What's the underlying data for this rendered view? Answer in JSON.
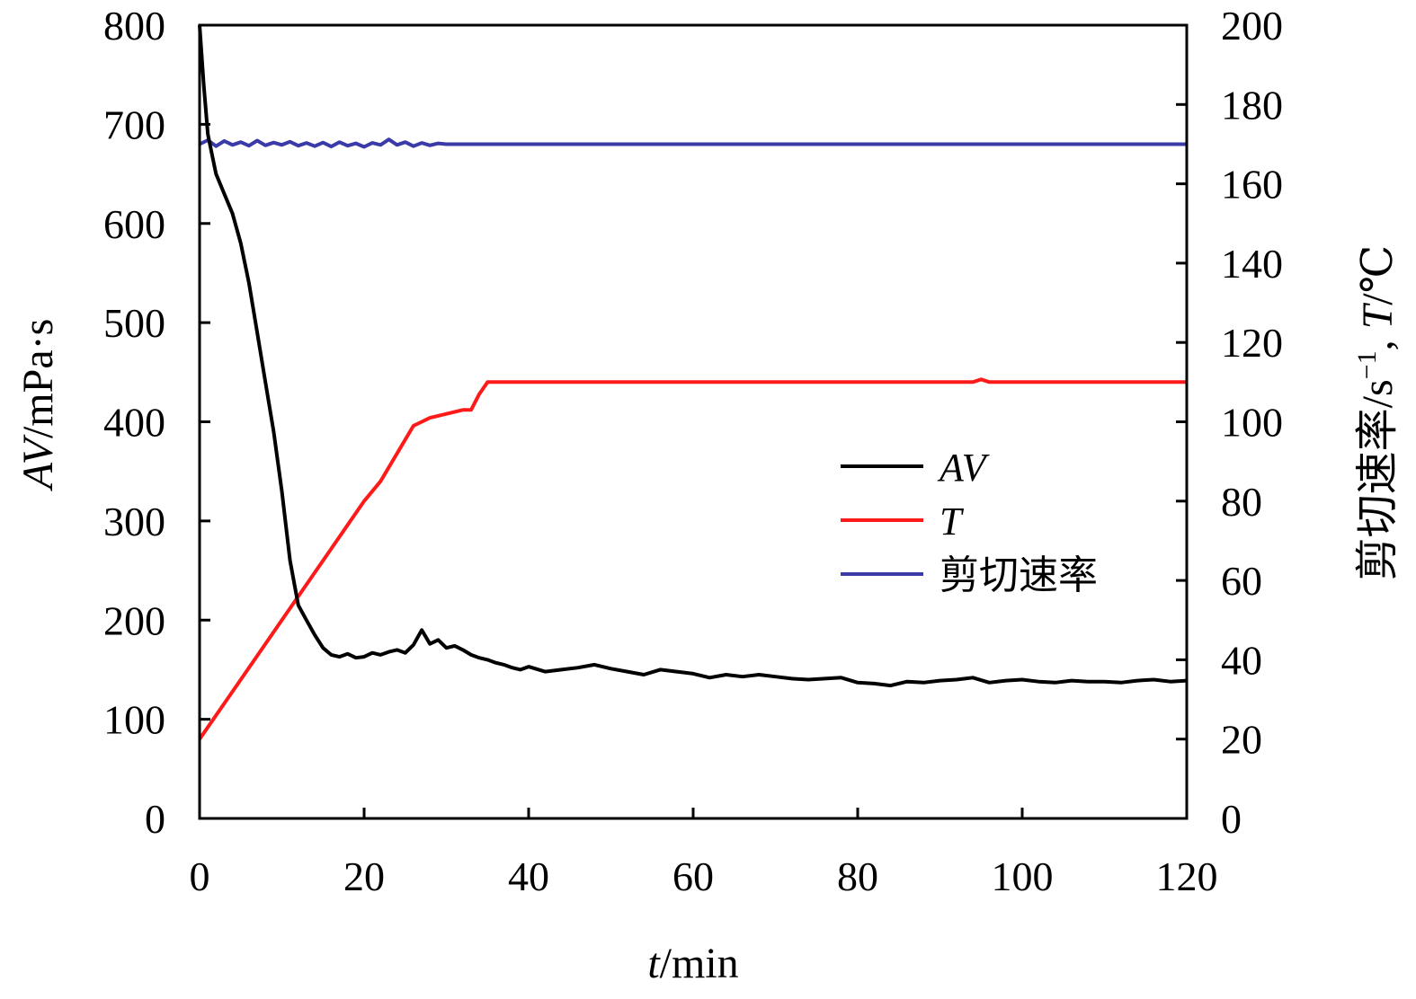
{
  "chart_data": {
    "type": "line",
    "title": "",
    "x_axis": {
      "title_var": "t",
      "title_unit": "/min",
      "range": [
        0,
        120
      ],
      "ticks": [
        0,
        20,
        40,
        60,
        80,
        100,
        120
      ]
    },
    "y_left": {
      "title_var": "AV",
      "title_unit": "/mPa·s",
      "range": [
        0,
        800
      ],
      "ticks": [
        0,
        100,
        200,
        300,
        400,
        500,
        600,
        700,
        800
      ]
    },
    "y_right": {
      "title_prefix": "剪切速率/s",
      "title_sup": "−1",
      "title_sep": ", ",
      "title_var": "T",
      "title_unit": "/℃",
      "range": [
        0,
        200
      ],
      "ticks": [
        0,
        20,
        40,
        60,
        80,
        100,
        120,
        140,
        160,
        180,
        200
      ]
    },
    "legend": {
      "position": "right-center"
    },
    "series": [
      {
        "name": "AV",
        "italic": true,
        "color": "#000000",
        "axis": "left",
        "points": [
          [
            0,
            800
          ],
          [
            0.5,
            740
          ],
          [
            1,
            690
          ],
          [
            1.5,
            670
          ],
          [
            2,
            650
          ],
          [
            3,
            630
          ],
          [
            4,
            610
          ],
          [
            5,
            580
          ],
          [
            6,
            540
          ],
          [
            7,
            490
          ],
          [
            8,
            440
          ],
          [
            9,
            390
          ],
          [
            10,
            330
          ],
          [
            11,
            260
          ],
          [
            12,
            215
          ],
          [
            13,
            200
          ],
          [
            14,
            185
          ],
          [
            15,
            172
          ],
          [
            16,
            165
          ],
          [
            17,
            163
          ],
          [
            18,
            166
          ],
          [
            19,
            162
          ],
          [
            20,
            163
          ],
          [
            21,
            167
          ],
          [
            22,
            165
          ],
          [
            23,
            168
          ],
          [
            24,
            170
          ],
          [
            25,
            167
          ],
          [
            26,
            175
          ],
          [
            27,
            190
          ],
          [
            28,
            176
          ],
          [
            29,
            180
          ],
          [
            30,
            172
          ],
          [
            31,
            174
          ],
          [
            32,
            170
          ],
          [
            33,
            165
          ],
          [
            34,
            162
          ],
          [
            35,
            160
          ],
          [
            36,
            157
          ],
          [
            37,
            155
          ],
          [
            38,
            152
          ],
          [
            39,
            150
          ],
          [
            40,
            153
          ],
          [
            42,
            148
          ],
          [
            44,
            150
          ],
          [
            46,
            152
          ],
          [
            48,
            155
          ],
          [
            50,
            151
          ],
          [
            52,
            148
          ],
          [
            54,
            145
          ],
          [
            56,
            150
          ],
          [
            58,
            148
          ],
          [
            60,
            146
          ],
          [
            62,
            142
          ],
          [
            64,
            145
          ],
          [
            66,
            143
          ],
          [
            68,
            145
          ],
          [
            70,
            143
          ],
          [
            72,
            141
          ],
          [
            74,
            140
          ],
          [
            76,
            141
          ],
          [
            78,
            142
          ],
          [
            80,
            137
          ],
          [
            82,
            136
          ],
          [
            84,
            134
          ],
          [
            86,
            138
          ],
          [
            88,
            137
          ],
          [
            90,
            139
          ],
          [
            92,
            140
          ],
          [
            94,
            142
          ],
          [
            96,
            137
          ],
          [
            98,
            139
          ],
          [
            100,
            140
          ],
          [
            102,
            138
          ],
          [
            104,
            137
          ],
          [
            106,
            139
          ],
          [
            108,
            138
          ],
          [
            110,
            138
          ],
          [
            112,
            137
          ],
          [
            114,
            139
          ],
          [
            116,
            140
          ],
          [
            118,
            138
          ],
          [
            120,
            139
          ]
        ]
      },
      {
        "name": "T",
        "italic": true,
        "color": "#ff1a1a",
        "axis": "right",
        "points": [
          [
            0,
            20
          ],
          [
            5,
            35
          ],
          [
            10,
            50
          ],
          [
            15,
            65
          ],
          [
            20,
            80
          ],
          [
            22,
            85
          ],
          [
            24,
            92
          ],
          [
            26,
            99
          ],
          [
            27,
            100
          ],
          [
            28,
            101
          ],
          [
            30,
            102
          ],
          [
            32,
            103
          ],
          [
            33,
            103
          ],
          [
            34,
            107
          ],
          [
            35,
            110
          ],
          [
            40,
            110
          ],
          [
            60,
            110
          ],
          [
            80,
            110
          ],
          [
            94,
            110
          ],
          [
            95,
            110.7
          ],
          [
            96,
            110
          ],
          [
            100,
            110
          ],
          [
            118,
            110
          ],
          [
            120,
            110
          ]
        ]
      },
      {
        "name": "剪切速率",
        "italic": false,
        "color": "#3a3aa8",
        "axis": "right",
        "points": [
          [
            0,
            170
          ],
          [
            1,
            171
          ],
          [
            2,
            169.5
          ],
          [
            3,
            170.8
          ],
          [
            4,
            169.8
          ],
          [
            5,
            170.5
          ],
          [
            6,
            169.6
          ],
          [
            7,
            170.9
          ],
          [
            8,
            169.7
          ],
          [
            9,
            170.4
          ],
          [
            10,
            169.8
          ],
          [
            11,
            170.6
          ],
          [
            12,
            169.6
          ],
          [
            13,
            170.3
          ],
          [
            14,
            169.5
          ],
          [
            15,
            170.4
          ],
          [
            16,
            169.4
          ],
          [
            17,
            170.5
          ],
          [
            18,
            169.6
          ],
          [
            19,
            170.2
          ],
          [
            20,
            169.3
          ],
          [
            21,
            170.3
          ],
          [
            22,
            169.8
          ],
          [
            23,
            171.2
          ],
          [
            24,
            169.8
          ],
          [
            25,
            170.5
          ],
          [
            26,
            169.5
          ],
          [
            27,
            170.3
          ],
          [
            28,
            169.7
          ],
          [
            29,
            170.2
          ],
          [
            30,
            170
          ],
          [
            40,
            170
          ],
          [
            60,
            170
          ],
          [
            80,
            170
          ],
          [
            100,
            170
          ],
          [
            120,
            170
          ]
        ]
      }
    ]
  }
}
